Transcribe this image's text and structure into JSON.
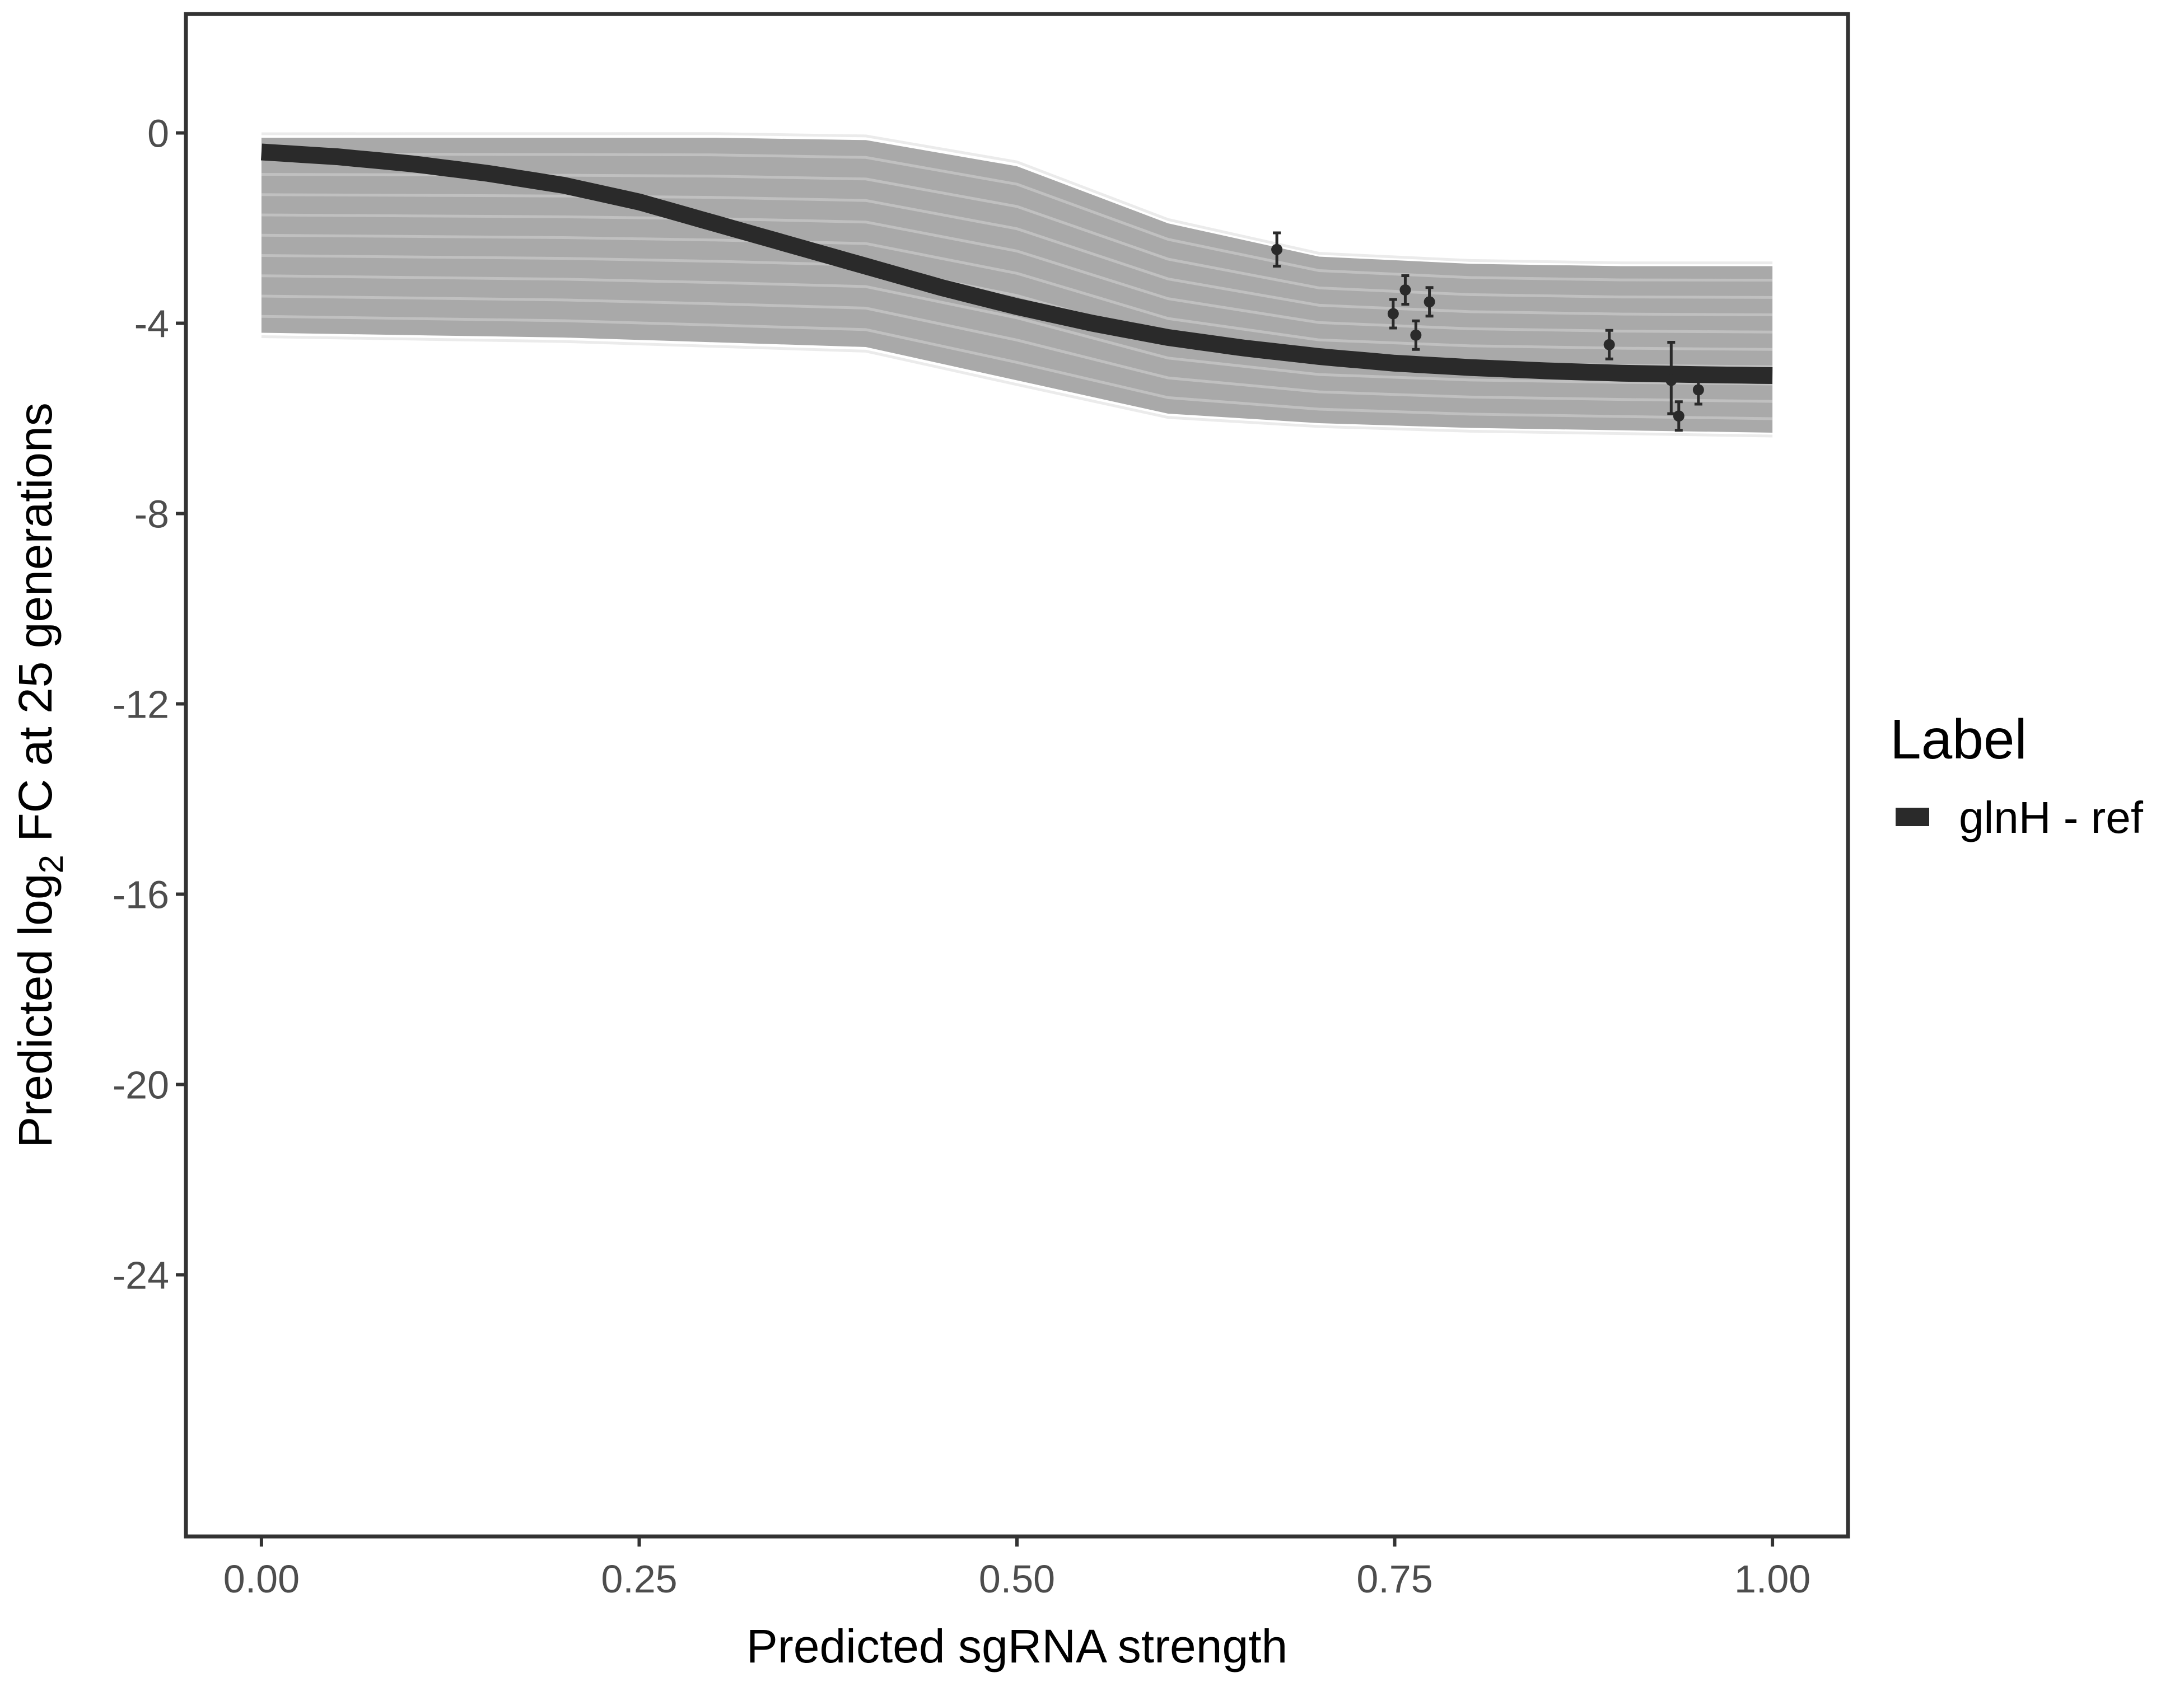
{
  "chart_data": {
    "type": "line",
    "xlabel": "Predicted sgRNA strength",
    "ylabel_parts": [
      "Predicted  log",
      "2",
      " FC at 25 generations"
    ],
    "xlim": [
      -0.05,
      1.05
    ],
    "ylim": [
      -29.5,
      2.5
    ],
    "x_ticks": [
      0,
      0.25,
      0.5,
      0.75,
      1
    ],
    "x_tick_labels": [
      "0.00",
      "0.25",
      "0.50",
      "0.75",
      "1.00"
    ],
    "y_ticks": [
      0,
      -4,
      -8,
      -12,
      -16,
      -20,
      -24
    ],
    "y_tick_labels": [
      "0",
      "-4",
      "-8",
      "-12",
      "-16",
      "-20",
      "-24"
    ],
    "grid": false,
    "legend": {
      "title": "Label",
      "position": "right",
      "entries": [
        {
          "label": "glnH - ref",
          "color": "#2a2a2a"
        }
      ]
    },
    "series": [
      {
        "name": "glnH - ref",
        "color": "#2a2a2a",
        "x": [
          0.0,
          0.05,
          0.1,
          0.15,
          0.2,
          0.25,
          0.3,
          0.35,
          0.4,
          0.45,
          0.5,
          0.55,
          0.6,
          0.65,
          0.7,
          0.75,
          0.8,
          0.85,
          0.9,
          0.95,
          1.0
        ],
        "y": [
          -0.4,
          -0.5,
          -0.65,
          -0.85,
          -1.1,
          -1.45,
          -1.9,
          -2.35,
          -2.8,
          -3.25,
          -3.65,
          -4.0,
          -4.3,
          -4.52,
          -4.7,
          -4.84,
          -4.93,
          -5.0,
          -5.05,
          -5.08,
          -5.1
        ]
      }
    ],
    "posterior_band": {
      "color": "#a9a9a9",
      "description_hidden": true,
      "x": [
        0.0,
        0.1,
        0.2,
        0.3,
        0.4,
        0.5,
        0.6,
        0.7,
        0.8,
        0.9,
        1.0
      ],
      "upper": [
        -0.1,
        -0.1,
        -0.1,
        -0.1,
        -0.15,
        -0.7,
        -1.9,
        -2.6,
        -2.75,
        -2.8,
        -2.8
      ],
      "lower": [
        -4.2,
        -4.25,
        -4.3,
        -4.4,
        -4.5,
        -5.2,
        -5.9,
        -6.1,
        -6.2,
        -6.25,
        -6.3
      ]
    },
    "points": [
      {
        "x": 0.672,
        "y": -2.45,
        "lo": -2.8,
        "hi": -2.1
      },
      {
        "x": 0.749,
        "y": -3.8,
        "lo": -4.1,
        "hi": -3.5
      },
      {
        "x": 0.757,
        "y": -3.3,
        "lo": -3.6,
        "hi": -3.0
      },
      {
        "x": 0.764,
        "y": -4.25,
        "lo": -4.55,
        "hi": -3.95
      },
      {
        "x": 0.773,
        "y": -3.55,
        "lo": -3.85,
        "hi": -3.25
      },
      {
        "x": 0.892,
        "y": -4.45,
        "lo": -4.75,
        "hi": -4.15
      },
      {
        "x": 0.933,
        "y": -5.2,
        "lo": -5.9,
        "hi": -4.4
      },
      {
        "x": 0.938,
        "y": -5.95,
        "lo": -6.25,
        "hi": -5.65
      },
      {
        "x": 0.951,
        "y": -5.4,
        "lo": -5.7,
        "hi": -5.1
      }
    ]
  }
}
